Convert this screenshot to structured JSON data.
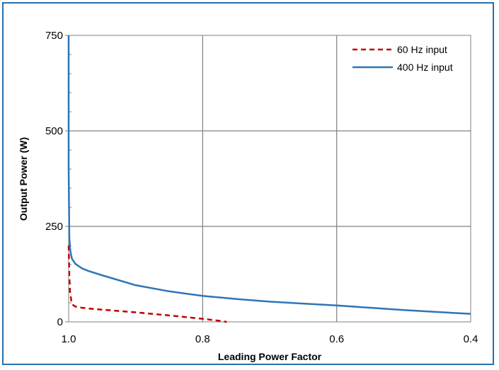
{
  "chart_data": {
    "type": "line",
    "xlabel": "Leading Power Factor",
    "ylabel": "Output Power (W)",
    "xlim": [
      1.0,
      0.4
    ],
    "ylim": [
      0,
      750
    ],
    "x_ticks": [
      "1.0",
      "0.8",
      "0.6",
      "0.4"
    ],
    "y_ticks": [
      "0",
      "250",
      "500",
      "750"
    ],
    "grid": true,
    "legend_position": "top-right",
    "series": [
      {
        "name": "60 Hz input",
        "color": "#c00000",
        "style": "dashed",
        "x": [
          1.0,
          0.999,
          0.998,
          0.996,
          0.994,
          0.99,
          0.985,
          0.97,
          0.95,
          0.9,
          0.85,
          0.8,
          0.78,
          0.764
        ],
        "y": [
          200,
          120,
          80,
          55,
          45,
          40,
          38,
          35,
          32,
          25,
          17,
          8,
          4,
          0
        ]
      },
      {
        "name": "400 Hz input",
        "color": "#2e75b6",
        "style": "solid",
        "x": [
          1.0,
          1.0,
          0.999,
          0.998,
          0.997,
          0.995,
          0.99,
          0.98,
          0.97,
          0.95,
          0.9,
          0.85,
          0.8,
          0.75,
          0.7,
          0.65,
          0.6,
          0.55,
          0.5,
          0.45,
          0.4
        ],
        "y": [
          750,
          400,
          220,
          195,
          180,
          165,
          152,
          140,
          133,
          122,
          96,
          80,
          68,
          60,
          53,
          48,
          43,
          37,
          31,
          26,
          21
        ]
      }
    ]
  }
}
